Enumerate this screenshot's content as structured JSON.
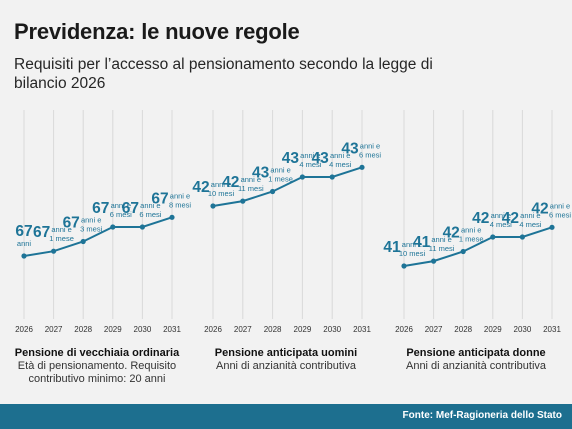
{
  "title": "Previdenza: le nuove regole",
  "subtitle": "Requisiti per l’accesso al pensionamento secondo la legge di bilancio 2026",
  "source": "Fonte: Mef-Ragioneria dello Stato",
  "colors": {
    "accent": "#1e7497",
    "footer_bg": "#1d6f8f"
  },
  "chart_data": [
    {
      "type": "line",
      "title": "Pensione di vecchiaia ordinaria",
      "subtitle": "Età di pensionamento. Requisito contributivo minimo: 20 anni",
      "x": [
        "2026",
        "2027",
        "2028",
        "2029",
        "2030",
        "2031"
      ],
      "values": [
        67,
        67.083,
        67.25,
        67.5,
        67.5,
        67.667
      ],
      "labels": [
        {
          "value": "67",
          "detail": "anni"
        },
        {
          "value": "67",
          "detail": "anni e 1 mese"
        },
        {
          "value": "67",
          "detail": "anni e 3 mesi"
        },
        {
          "value": "67",
          "detail": "anni e 6 mesi"
        },
        {
          "value": "67",
          "detail": "anni e 6 mesi"
        },
        {
          "value": "67",
          "detail": "anni e 8 mesi"
        }
      ]
    },
    {
      "type": "line",
      "title": "Pensione anticipata uomini",
      "subtitle": "Anni di anzianità contributiva",
      "x": [
        "2026",
        "2027",
        "2028",
        "2029",
        "2030",
        "2031"
      ],
      "values": [
        42.833,
        42.917,
        43.083,
        43.333,
        43.333,
        43.5
      ],
      "labels": [
        {
          "value": "42",
          "detail": "anni e 10 mesi"
        },
        {
          "value": "42",
          "detail": "anni e 11 mesi"
        },
        {
          "value": "43",
          "detail": "anni e 1 mese"
        },
        {
          "value": "43",
          "detail": "anni e 4 mesi"
        },
        {
          "value": "43",
          "detail": "anni e 4 mesi"
        },
        {
          "value": "43",
          "detail": "anni e 6 mesi"
        }
      ]
    },
    {
      "type": "line",
      "title": "Pensione anticipata donne",
      "subtitle": "Anni di anzianità contributiva",
      "x": [
        "2026",
        "2027",
        "2028",
        "2029",
        "2030",
        "2031"
      ],
      "values": [
        41.833,
        41.917,
        42.083,
        42.333,
        42.333,
        42.5
      ],
      "labels": [
        {
          "value": "41",
          "detail": "anni e 10 mesi"
        },
        {
          "value": "41",
          "detail": "anni e 11 mesi"
        },
        {
          "value": "42",
          "detail": "anni e 1 mese"
        },
        {
          "value": "42",
          "detail": "anni e 4 mesi"
        },
        {
          "value": "42",
          "detail": "anni e 4 mesi"
        },
        {
          "value": "42",
          "detail": "anni e 6 mesi"
        }
      ]
    }
  ]
}
